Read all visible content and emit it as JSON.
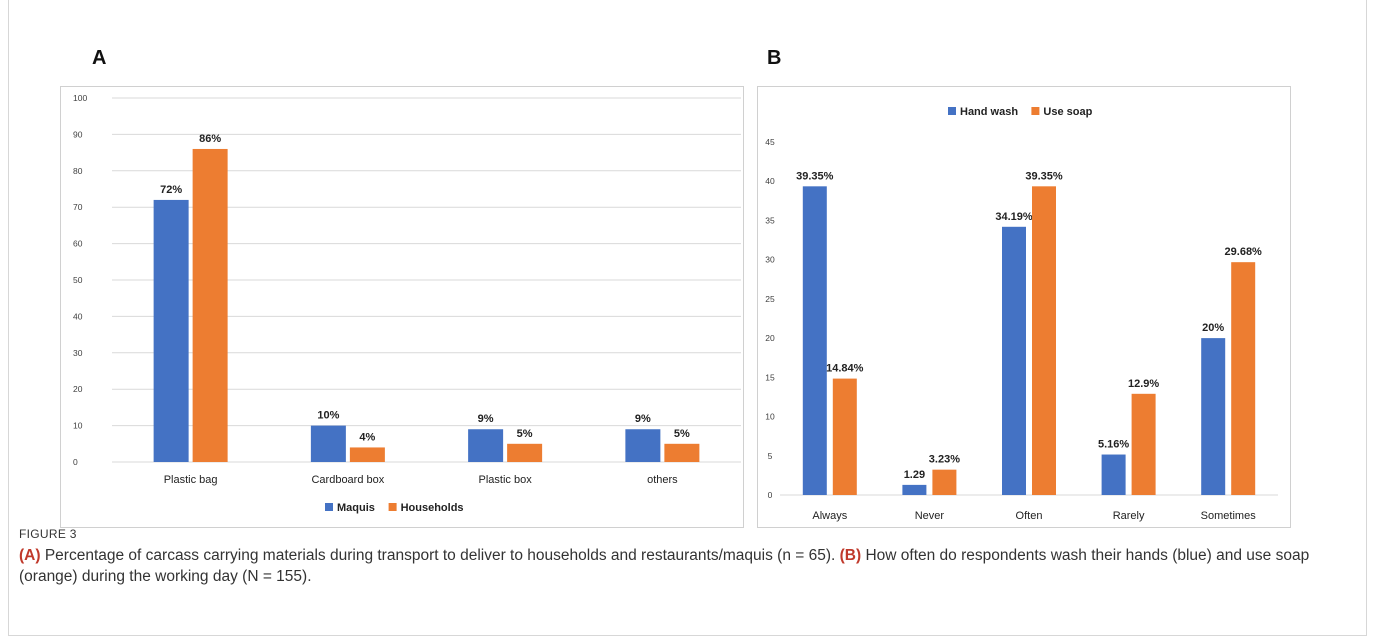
{
  "figure": {
    "label": "FIGURE 3",
    "caption_a_tag": "(A)",
    "caption_a_text": " Percentage of carcass carrying materials during transport to deliver to households and restaurants/maquis (n = 65). ",
    "caption_b_tag": "(B)",
    "caption_b_text": " How often do respondents wash their hands (blue) and use soap (orange) during the working day (N = 155).",
    "panel_a_letter": "A",
    "panel_b_letter": "B"
  },
  "colors": {
    "blue": "#4472c4",
    "orange": "#ed7d31",
    "grid": "#d9d9d9",
    "text": "#404040"
  },
  "chart_data": [
    {
      "type": "bar",
      "panel": "A",
      "categories": [
        "Plastic bag",
        "Cardboard box",
        "Plastic box",
        "others"
      ],
      "series": [
        {
          "name": "Maquis",
          "values": [
            72,
            10,
            9,
            9
          ],
          "labels": [
            "72%",
            "10%",
            "9%",
            "9%"
          ]
        },
        {
          "name": "Households",
          "values": [
            86,
            4,
            5,
            5
          ],
          "labels": [
            "86%",
            "4%",
            "5%",
            "5%"
          ]
        }
      ],
      "ylim": [
        0,
        100
      ],
      "yticks": [
        0,
        10,
        20,
        30,
        40,
        50,
        60,
        70,
        80,
        90,
        100
      ],
      "grid": true,
      "legend": "bottom"
    },
    {
      "type": "bar",
      "panel": "B",
      "categories": [
        "Always",
        "Never",
        "Often",
        "Rarely",
        "Sometimes"
      ],
      "series": [
        {
          "name": "Hand wash",
          "values": [
            39.35,
            1.29,
            34.19,
            5.16,
            20
          ],
          "labels": [
            "39.35%",
            "1.29",
            "34.19%",
            "5.16%",
            "20%"
          ]
        },
        {
          "name": "Use soap",
          "values": [
            14.84,
            3.23,
            39.35,
            12.9,
            29.68
          ],
          "labels": [
            "14.84%",
            "3.23%",
            "39.35%",
            "12.9%",
            "29.68%"
          ]
        }
      ],
      "ylim": [
        0,
        45
      ],
      "yticks": [
        0,
        5,
        10,
        15,
        20,
        25,
        30,
        35,
        40,
        45
      ],
      "grid": false,
      "legend": "top"
    }
  ]
}
